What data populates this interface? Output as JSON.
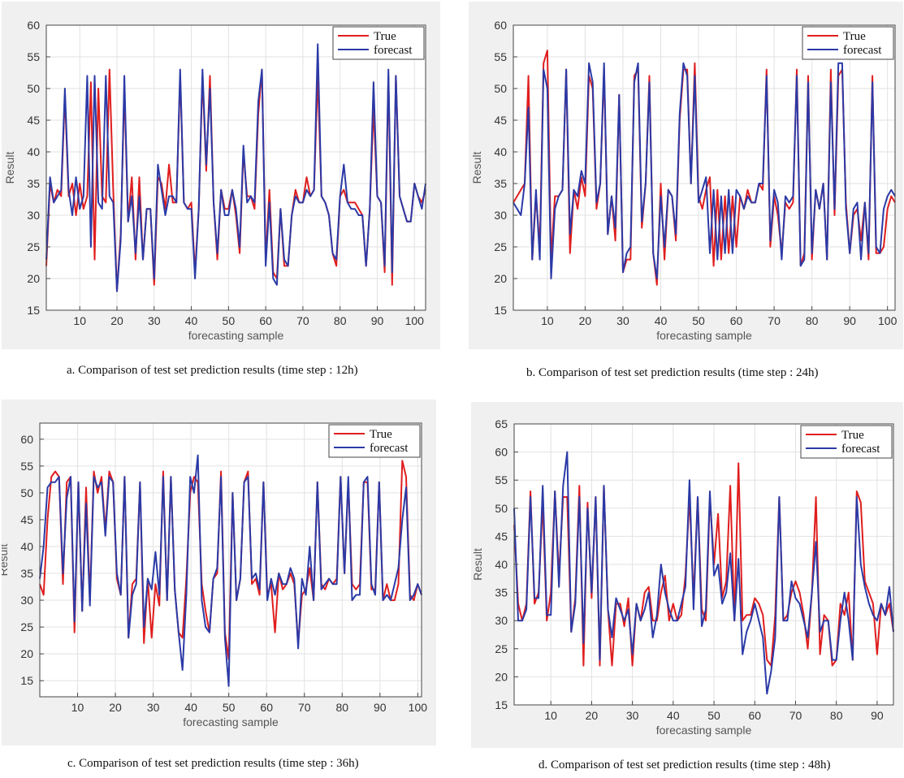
{
  "colors": {
    "true": "#e01e1e",
    "forecast": "#2b3aa6"
  },
  "captions": [
    "a. Comparison of test set prediction results (time step : 12h)",
    "b. Comparison of test set prediction results (time step : 24h)",
    "c. Comparison of test set prediction results (time step : 36h)",
    "d. Comparison of test set prediction results (time step : 48h)"
  ],
  "chart_data": [
    {
      "type": "line",
      "xlabel": "forecasting sample",
      "ylabel": "Result",
      "xlim": [
        1,
        103
      ],
      "ylim": [
        15,
        60
      ],
      "xticks": [
        10,
        20,
        30,
        40,
        50,
        60,
        70,
        80,
        90,
        100
      ],
      "yticks": [
        15,
        20,
        25,
        30,
        35,
        40,
        45,
        50,
        55,
        60
      ],
      "legend": [
        "True",
        "forecast"
      ],
      "legend_position": "top-right",
      "series": [
        {
          "name": "True",
          "values": [
            22,
            35,
            32,
            34,
            33,
            49,
            33,
            35,
            30,
            35,
            31,
            33,
            51,
            23,
            50,
            33,
            32,
            53,
            34,
            18,
            27,
            50,
            29,
            36,
            23,
            36,
            23,
            31,
            31,
            19,
            36,
            35,
            31,
            38,
            32,
            32,
            52,
            32,
            31,
            32,
            21,
            31,
            52,
            37,
            52,
            32,
            23,
            34,
            31,
            31,
            34,
            30,
            24,
            40,
            33,
            33,
            31,
            46,
            53,
            23,
            34,
            21,
            20,
            31,
            22,
            22,
            30,
            34,
            32,
            32,
            36,
            33,
            34,
            52,
            33,
            32,
            30,
            24,
            22,
            33,
            34,
            32,
            32,
            32,
            31,
            30,
            22,
            31,
            47,
            33,
            32,
            21,
            52,
            19,
            52,
            33,
            31,
            29,
            29,
            35,
            33,
            32,
            34
          ]
        },
        {
          "name": "forecast",
          "values": [
            23,
            36,
            32,
            33,
            34,
            50,
            34,
            30,
            36,
            31,
            33,
            52,
            25,
            52,
            32,
            31,
            52,
            33,
            32,
            18,
            26,
            52,
            29,
            33,
            24,
            33,
            23,
            31,
            31,
            20,
            38,
            34,
            30,
            33,
            33,
            32,
            53,
            32,
            31,
            31,
            20,
            31,
            53,
            38,
            50,
            32,
            24,
            34,
            30,
            30,
            34,
            31,
            25,
            41,
            32,
            33,
            32,
            48,
            53,
            22,
            32,
            20,
            19,
            31,
            23,
            22,
            30,
            33,
            32,
            32,
            34,
            33,
            34,
            57,
            33,
            32,
            30,
            24,
            23,
            33,
            38,
            32,
            31,
            31,
            30,
            30,
            22,
            31,
            51,
            33,
            32,
            22,
            53,
            21,
            52,
            33,
            31,
            29,
            29,
            35,
            33,
            31,
            35
          ]
        }
      ]
    },
    {
      "type": "line",
      "xlabel": "forecasting sample",
      "ylabel": "Result",
      "xlim": [
        1,
        102
      ],
      "ylim": [
        15,
        60
      ],
      "xticks": [
        10,
        20,
        30,
        40,
        50,
        60,
        70,
        80,
        90,
        100
      ],
      "yticks": [
        15,
        20,
        25,
        30,
        35,
        40,
        45,
        50,
        55,
        60
      ],
      "legend": [
        "True",
        "forecast"
      ],
      "legend_position": "top-right",
      "series": [
        {
          "name": "True",
          "values": [
            32,
            33,
            34,
            35,
            52,
            23,
            33,
            25,
            54,
            56,
            23,
            33,
            33,
            34,
            53,
            24,
            34,
            31,
            36,
            33,
            52,
            50,
            31,
            35,
            53,
            27,
            33,
            26,
            49,
            21,
            23,
            23,
            52,
            53,
            28,
            35,
            52,
            24,
            19,
            35,
            23,
            34,
            33,
            26,
            45,
            53,
            53,
            35,
            54,
            33,
            31,
            34,
            36,
            22,
            34,
            23,
            33,
            24,
            33,
            25,
            33,
            31,
            34,
            32,
            32,
            35,
            34,
            53,
            25,
            33,
            30,
            24,
            32,
            31,
            32,
            53,
            22,
            24,
            52,
            23,
            34,
            31,
            35,
            23,
            53,
            30,
            52,
            53,
            32,
            24,
            30,
            31,
            26,
            32,
            23,
            52,
            24,
            24,
            25,
            31,
            33,
            32
          ]
        },
        {
          "name": "forecast",
          "values": [
            32,
            31,
            30,
            35,
            47,
            23,
            34,
            23,
            53,
            50,
            20,
            31,
            33,
            34,
            53,
            27,
            34,
            33,
            37,
            35,
            54,
            51,
            32,
            35,
            54,
            27,
            33,
            28,
            49,
            21,
            24,
            25,
            51,
            54,
            29,
            35,
            51,
            24,
            20,
            33,
            25,
            34,
            33,
            27,
            46,
            54,
            52,
            35,
            52,
            32,
            34,
            36,
            24,
            34,
            23,
            33,
            24,
            34,
            24,
            34,
            33,
            31,
            33,
            32,
            32,
            35,
            35,
            52,
            26,
            34,
            32,
            23,
            33,
            32,
            33,
            52,
            22,
            23,
            51,
            24,
            34,
            31,
            35,
            23,
            51,
            31,
            54,
            54,
            31,
            24,
            31,
            32,
            23,
            32,
            24,
            51,
            25,
            24,
            31,
            33,
            34,
            33
          ]
        }
      ]
    },
    {
      "type": "line",
      "xlabel": "forecasting sample",
      "ylabel": "Result",
      "xlim": [
        0,
        101
      ],
      "ylim": [
        12,
        63
      ],
      "xticks": [
        10,
        20,
        30,
        40,
        50,
        60,
        70,
        80,
        90,
        100
      ],
      "yticks": [
        15,
        20,
        25,
        30,
        35,
        40,
        45,
        50,
        55,
        60
      ],
      "legend": [
        "True",
        "forecast"
      ],
      "legend_position": "top-right",
      "series": [
        {
          "name": "True",
          "values": [
            33,
            31,
            45,
            53,
            54,
            53,
            33,
            52,
            53,
            24,
            52,
            28,
            51,
            30,
            54,
            50,
            53,
            43,
            54,
            52,
            34,
            31,
            53,
            23,
            33,
            34,
            52,
            22,
            34,
            23,
            33,
            29,
            54,
            30,
            53,
            32,
            24,
            23,
            34,
            50,
            53,
            52,
            33,
            28,
            24,
            34,
            35,
            54,
            24,
            19,
            50,
            30,
            34,
            52,
            54,
            33,
            34,
            31,
            52,
            31,
            33,
            24,
            35,
            32,
            33,
            35,
            33,
            22,
            31,
            32,
            36,
            30,
            52,
            33,
            32,
            34,
            33,
            34,
            53,
            35,
            52,
            33,
            32,
            33,
            52,
            52,
            32,
            32,
            52,
            30,
            33,
            30,
            30,
            33,
            56,
            53,
            31,
            30,
            33,
            31
          ]
        },
        {
          "name": "forecast",
          "values": [
            34,
            40,
            51,
            52,
            52,
            53,
            35,
            49,
            53,
            26,
            52,
            28,
            48,
            29,
            53,
            51,
            52,
            42,
            53,
            52,
            35,
            31,
            53,
            23,
            31,
            33,
            52,
            25,
            34,
            32,
            39,
            31,
            53,
            30,
            53,
            32,
            24,
            17,
            31,
            53,
            50,
            57,
            30,
            25,
            24,
            34,
            36,
            53,
            23,
            14,
            50,
            30,
            34,
            52,
            53,
            34,
            35,
            32,
            52,
            30,
            34,
            31,
            35,
            33,
            33,
            36,
            34,
            21,
            34,
            31,
            40,
            30,
            52,
            32,
            33,
            34,
            33,
            33,
            53,
            35,
            53,
            30,
            31,
            31,
            52,
            53,
            33,
            31,
            52,
            30,
            31,
            30,
            33,
            36,
            45,
            51,
            30,
            31,
            33,
            31
          ]
        }
      ]
    },
    {
      "type": "line",
      "xlabel": "forecasting sample",
      "ylabel": "Result",
      "xlim": [
        1,
        94
      ],
      "ylim": [
        15,
        65
      ],
      "xticks": [
        10,
        20,
        30,
        40,
        50,
        60,
        70,
        80,
        90
      ],
      "yticks": [
        15,
        20,
        25,
        30,
        35,
        40,
        45,
        50,
        55,
        60,
        65
      ],
      "legend": [
        "True",
        "forecast"
      ],
      "legend_position": "top-right",
      "series": [
        {
          "name": "True",
          "values": [
            47,
            33,
            30,
            33,
            53,
            33,
            35,
            51,
            30,
            35,
            53,
            38,
            52,
            52,
            28,
            34,
            54,
            22,
            51,
            34,
            52,
            22,
            54,
            32,
            22,
            33,
            33,
            29,
            34,
            22,
            33,
            30,
            35,
            36,
            30,
            30,
            35,
            38,
            30,
            33,
            30,
            31,
            38,
            52,
            34,
            52,
            32,
            30,
            52,
            40,
            49,
            34,
            37,
            54,
            30,
            58,
            30,
            31,
            31,
            34,
            33,
            31,
            23,
            22,
            31,
            52,
            30,
            31,
            35,
            37,
            35,
            31,
            25,
            35,
            52,
            24,
            31,
            30,
            22,
            23,
            33,
            31,
            35,
            23,
            53,
            51,
            37,
            35,
            33,
            24,
            33,
            31,
            33,
            28
          ]
        },
        {
          "name": "forecast",
          "values": [
            50,
            30,
            30,
            32,
            52,
            34,
            34,
            54,
            31,
            31,
            53,
            36,
            54,
            60,
            28,
            33,
            52,
            26,
            50,
            35,
            52,
            23,
            54,
            32,
            27,
            34,
            32,
            30,
            32,
            24,
            33,
            30,
            32,
            35,
            27,
            31,
            40,
            35,
            32,
            30,
            30,
            33,
            36,
            55,
            32,
            52,
            29,
            32,
            53,
            38,
            40,
            33,
            35,
            42,
            30,
            41,
            24,
            28,
            30,
            33,
            30,
            27,
            17,
            21,
            27,
            52,
            30,
            30,
            37,
            34,
            33,
            30,
            27,
            35,
            44,
            28,
            30,
            30,
            23,
            23,
            30,
            35,
            30,
            23,
            52,
            40,
            36,
            33,
            31,
            30,
            33,
            31,
            36,
            28
          ]
        }
      ]
    }
  ]
}
